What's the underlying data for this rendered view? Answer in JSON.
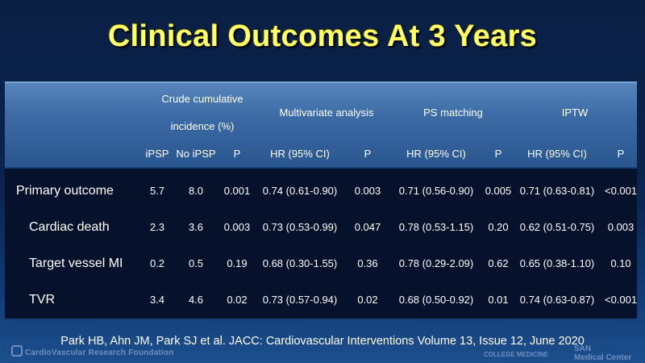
{
  "title": "Clinical Outcomes At 3 Years",
  "table": {
    "group_headers": {
      "crude_line1": "Crude cumulative",
      "crude_line2": "incidence (%)",
      "multivariate": "Multivariate analysis",
      "ps_matching": "PS matching",
      "iptw": "IPTW"
    },
    "columns": [
      "iPSP",
      "No iPSP",
      "P",
      "HR (95% CI)",
      "P",
      "HR (95% CI)",
      "P",
      "HR (95% CI)",
      "P"
    ],
    "rows": [
      {
        "label": "Primary outcome",
        "values": [
          "5.7",
          "8.0",
          "0.001",
          "0.74 (0.61-0.90)",
          "0.003",
          "0.71 (0.56-0.90)",
          "0.005",
          "0.71 (0.63-0.81)",
          "<0.001"
        ]
      },
      {
        "label": "Cardiac death",
        "values": [
          "2.3",
          "3.6",
          "0.003",
          "0.73 (0.53-0.99)",
          "0.047",
          "0.78 (0.53-1.15)",
          "0.20",
          "0.62 (0.51-0.75)",
          "0.003"
        ]
      },
      {
        "label": "Target vessel MI",
        "values": [
          "0.2",
          "0.5",
          "0.19",
          "0.68 (0.30-1.55)",
          "0.36",
          "0.78 (0.29-2.09)",
          "0.62",
          "0.65 (0.38-1.10)",
          "0.10"
        ]
      },
      {
        "label": "TVR",
        "values": [
          "3.4",
          "4.6",
          "0.02",
          "0.73 (0.57-0.94)",
          "0.02",
          "0.68 (0.50-0.92)",
          "0.01",
          "0.74 (0.63-0.87)",
          "<0.001"
        ]
      }
    ]
  },
  "citation": "Park HB, Ahn JM, Park SJ et al. JACC: Cardiovascular Interventions Volume 13, Issue 12, June 2020",
  "footer": {
    "left_logo": "CardioVascular Research Foundation",
    "mid_logo": "COLLEGE MEDICINE",
    "right_logo_line1": "SAN",
    "right_logo_line2": "Medical Center"
  }
}
